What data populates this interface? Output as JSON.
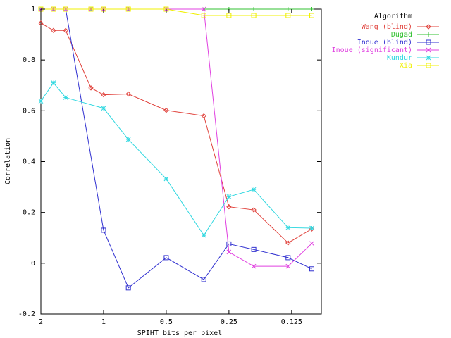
{
  "chart_data": {
    "type": "line",
    "xlabel": "SPIHT bits per pixel",
    "ylabel": "Correlation",
    "x_scale": "log",
    "x_reversed": true,
    "xlim": [
      2,
      0.09
    ],
    "ylim": [
      -0.2,
      1
    ],
    "x_ticks": [
      {
        "value": 2,
        "label": "2"
      },
      {
        "value": 1,
        "label": "1"
      },
      {
        "value": 0.5,
        "label": "0.5"
      },
      {
        "value": 0.25,
        "label": "0.25"
      },
      {
        "value": 0.125,
        "label": "0.125"
      }
    ],
    "y_ticks": [
      {
        "value": -0.2,
        "label": "-0.2"
      },
      {
        "value": 0,
        "label": "0"
      },
      {
        "value": 0.2,
        "label": "0.2"
      },
      {
        "value": 0.4,
        "label": "0.4"
      },
      {
        "value": 0.6,
        "label": "0.6"
      },
      {
        "value": 0.8,
        "label": "0.8"
      },
      {
        "value": 1,
        "label": "1"
      }
    ],
    "grid": false,
    "legend": {
      "title": "Algorithm",
      "placement": "top-right outside"
    },
    "series": [
      {
        "name": "Wang (blind)",
        "color": "#e0403a",
        "marker": "diamond",
        "points": [
          [
            2,
            0.945
          ],
          [
            1.74,
            0.916
          ],
          [
            1.52,
            0.916
          ],
          [
            1.15,
            0.69
          ],
          [
            1,
            0.663
          ],
          [
            0.76,
            0.666
          ],
          [
            0.5,
            0.602
          ],
          [
            0.33,
            0.58
          ],
          [
            0.25,
            0.222
          ],
          [
            0.19,
            0.21
          ],
          [
            0.13,
            0.08
          ],
          [
            0.1,
            0.135
          ]
        ]
      },
      {
        "name": "Dugad",
        "color": "#30c030",
        "marker": "plus",
        "points": [
          [
            2,
            1
          ],
          [
            1.74,
            1
          ],
          [
            1.52,
            1
          ],
          [
            1.15,
            1
          ],
          [
            1,
            1
          ],
          [
            0.76,
            1
          ],
          [
            0.5,
            1
          ],
          [
            0.33,
            1
          ],
          [
            0.25,
            1
          ],
          [
            0.19,
            1
          ],
          [
            0.13,
            1
          ],
          [
            0.1,
            1
          ]
        ]
      },
      {
        "name": "Inoue (blind)",
        "color": "#3030d0",
        "marker": "square",
        "points": [
          [
            1.52,
            1
          ],
          [
            1,
            0.13
          ],
          [
            0.76,
            -0.097
          ],
          [
            0.5,
            0.022
          ],
          [
            0.33,
            -0.064
          ],
          [
            0.25,
            0.076
          ],
          [
            0.19,
            0.054
          ],
          [
            0.13,
            0.022
          ],
          [
            0.1,
            -0.022
          ]
        ]
      },
      {
        "name": "Inoue (significant)",
        "color": "#e040e0",
        "marker": "cross",
        "points": [
          [
            2,
            1
          ],
          [
            1.74,
            1
          ],
          [
            1.52,
            1
          ],
          [
            1.15,
            1
          ],
          [
            1,
            1
          ],
          [
            0.76,
            1
          ],
          [
            0.5,
            1
          ],
          [
            0.33,
            1
          ],
          [
            0.25,
            0.044
          ],
          [
            0.19,
            -0.012
          ],
          [
            0.13,
            -0.012
          ],
          [
            0.1,
            0.078
          ]
        ]
      },
      {
        "name": "Kundur",
        "color": "#30d8e0",
        "marker": "star",
        "points": [
          [
            2,
            0.638
          ],
          [
            1.74,
            0.71
          ],
          [
            1.52,
            0.652
          ],
          [
            1,
            0.61
          ],
          [
            0.76,
            0.487
          ],
          [
            0.5,
            0.332
          ],
          [
            0.33,
            0.11
          ],
          [
            0.25,
            0.262
          ],
          [
            0.19,
            0.29
          ],
          [
            0.13,
            0.14
          ],
          [
            0.1,
            0.138
          ]
        ]
      },
      {
        "name": "Xia",
        "color": "#f0f000",
        "marker": "square",
        "points": [
          [
            2,
            1
          ],
          [
            1.74,
            1
          ],
          [
            1.52,
            1
          ],
          [
            1.15,
            1
          ],
          [
            1,
            1
          ],
          [
            0.76,
            1
          ],
          [
            0.5,
            1
          ],
          [
            0.33,
            0.975
          ],
          [
            0.25,
            0.975
          ],
          [
            0.19,
            0.975
          ],
          [
            0.13,
            0.975
          ],
          [
            0.1,
            0.975
          ]
        ]
      }
    ]
  }
}
